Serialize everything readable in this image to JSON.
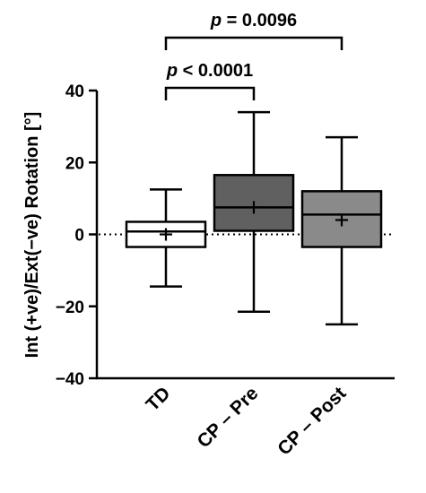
{
  "chart_data": {
    "type": "boxplot",
    "ylabel": "Int (+ve)/Ext(−ve) Rotation [°]",
    "ylim": [
      -40,
      40
    ],
    "yticks": [
      -40,
      -20,
      0,
      20,
      40
    ],
    "ytick_labels": [
      "−40",
      "−20",
      "0",
      "20",
      "40"
    ],
    "reference_line": {
      "y": 0,
      "style": "dotted"
    },
    "categories": [
      "TD",
      "CP – Pre",
      "CP – Post"
    ],
    "boxes": [
      {
        "name": "TD",
        "min": -14.5,
        "q1": -3.5,
        "median": 0.8,
        "q3": 3.5,
        "max": 12.5,
        "mean": 0.0,
        "color": "#ffffff"
      },
      {
        "name": "CP – Pre",
        "min": -21.5,
        "q1": 1.0,
        "median": 7.5,
        "q3": 16.5,
        "max": 34.0,
        "mean": 7.5,
        "color": "#606060"
      },
      {
        "name": "CP – Post",
        "min": -25.0,
        "q1": -3.5,
        "median": 5.5,
        "q3": 12.0,
        "max": 27.0,
        "mean": 4.0,
        "color": "#8a8a8a"
      }
    ],
    "significance": [
      {
        "from": "TD",
        "to": "CP – Pre",
        "label_prefix": "p",
        "label_value": " < 0.0001"
      },
      {
        "from": "TD",
        "to": "CP – Post",
        "label_prefix": "p",
        "label_value": " = 0.0096"
      }
    ],
    "grid": false,
    "legend": "none"
  }
}
